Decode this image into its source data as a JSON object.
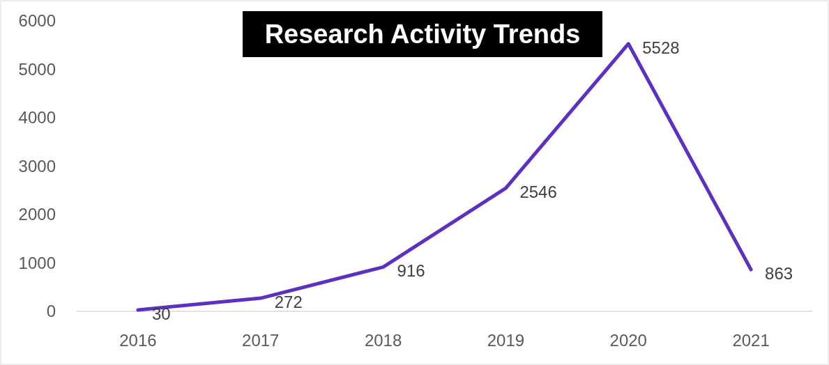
{
  "chart_data": {
    "type": "line",
    "title": "Research Activity Trends",
    "categories": [
      "2016",
      "2017",
      "2018",
      "2019",
      "2020",
      "2021"
    ],
    "series": [
      {
        "color": "#5b30c2",
        "values": [
          30,
          272,
          916,
          2546,
          5528,
          863
        ]
      }
    ],
    "ylim": [
      0,
      6000
    ],
    "yticks": [
      0,
      1000,
      2000,
      3000,
      4000,
      5000,
      6000
    ],
    "grid": false,
    "marker": "none",
    "line_style": "solid",
    "data_labels": true
  }
}
